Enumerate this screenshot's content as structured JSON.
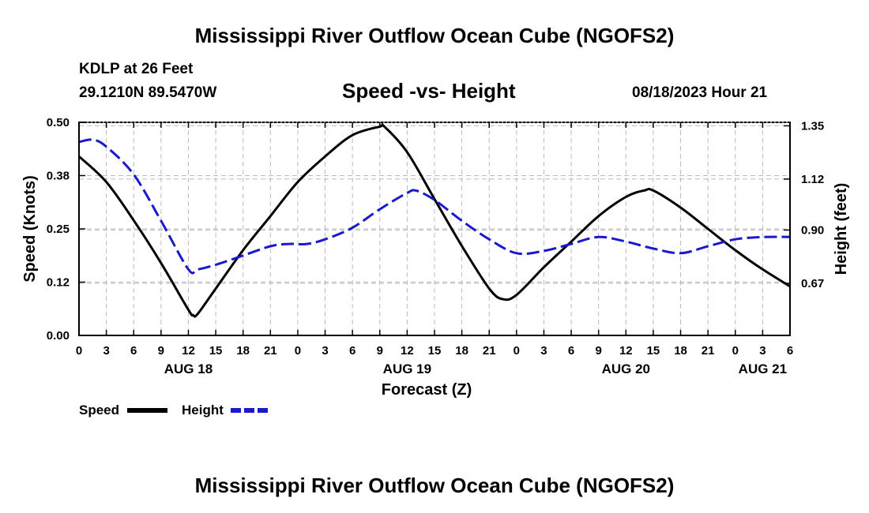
{
  "header": {
    "title": "Mississippi River Outflow Ocean Cube (NGOFS2)",
    "station": "KDLP at 26 Feet",
    "coords": "29.1210N  89.5470W",
    "subtitle": "Speed -vs- Height",
    "datetime": "08/18/2023 Hour 21"
  },
  "legend": {
    "speed_label": "Speed",
    "height_label": "Height"
  },
  "footer": {
    "title": "Mississippi River Outflow Ocean Cube (NGOFS2)"
  },
  "colors": {
    "speed": "#000000",
    "height": "#1a1acc",
    "grid": "#bbbbbb"
  },
  "chart_data": {
    "type": "line",
    "title": "Speed -vs- Height",
    "xlabel": "Forecast (Z)",
    "ylabel_left": "Speed (Knots)",
    "ylabel_right": "Height (feet)",
    "xlim": [
      0,
      78
    ],
    "ylim_left": [
      0,
      0.5
    ],
    "ylim_right": [
      0.445,
      1.365
    ],
    "x_tick_values": [
      0,
      3,
      6,
      9,
      12,
      15,
      18,
      21,
      24,
      27,
      30,
      33,
      36,
      39,
      42,
      45,
      48,
      51,
      54,
      57,
      60,
      63,
      66,
      69,
      72,
      75,
      78
    ],
    "x_tick_labels": [
      "0",
      "3",
      "6",
      "9",
      "12",
      "15",
      "18",
      "21",
      "0",
      "3",
      "6",
      "9",
      "12",
      "15",
      "18",
      "21",
      "0",
      "3",
      "6",
      "9",
      "12",
      "15",
      "18",
      "21",
      "0",
      "3",
      "6"
    ],
    "date_labels": [
      {
        "x": 12,
        "label": "AUG 18"
      },
      {
        "x": 36,
        "label": "AUG 19"
      },
      {
        "x": 60,
        "label": "AUG 20"
      },
      {
        "x": 75,
        "label": "AUG 21"
      }
    ],
    "y_left_ticks": [
      0.0,
      0.125,
      0.25,
      0.375,
      0.5
    ],
    "y_left_tick_labels": [
      "0.00",
      "0.12",
      "0.25",
      "0.38",
      "0.50"
    ],
    "y_right_ticks": [
      0.67,
      0.9,
      1.12,
      1.35
    ],
    "y_right_tick_labels": [
      "0.67",
      "0.90",
      "1.12",
      "1.35"
    ],
    "grid": true,
    "series": [
      {
        "name": "Speed",
        "axis": "left",
        "style": "solid",
        "x": [
          0,
          3,
          6,
          9,
          12,
          12.5,
          13,
          15,
          18,
          21,
          24,
          27,
          30,
          33,
          33.5,
          36,
          39,
          42,
          45,
          46.5,
          48,
          51,
          54,
          57,
          60,
          62,
          63,
          66,
          69,
          72,
          75,
          78
        ],
        "values": [
          0.42,
          0.36,
          0.27,
          0.17,
          0.06,
          0.048,
          0.05,
          0.11,
          0.2,
          0.28,
          0.36,
          0.42,
          0.47,
          0.49,
          0.49,
          0.43,
          0.32,
          0.21,
          0.11,
          0.085,
          0.095,
          0.16,
          0.22,
          0.28,
          0.325,
          0.34,
          0.34,
          0.3,
          0.25,
          0.2,
          0.155,
          0.115
        ]
      },
      {
        "name": "Height",
        "axis": "right",
        "style": "dashed",
        "x": [
          0,
          1.5,
          3,
          6,
          9,
          12,
          13,
          15,
          18,
          21,
          23,
          25,
          27,
          30,
          33,
          36,
          37,
          39,
          42,
          45,
          48,
          51,
          54,
          57,
          60,
          63,
          66,
          69,
          72,
          75,
          78
        ],
        "values": [
          1.28,
          1.29,
          1.26,
          1.14,
          0.94,
          0.73,
          0.73,
          0.75,
          0.79,
          0.83,
          0.84,
          0.84,
          0.86,
          0.91,
          0.99,
          1.06,
          1.07,
          1.03,
          0.94,
          0.86,
          0.8,
          0.81,
          0.84,
          0.87,
          0.85,
          0.82,
          0.8,
          0.83,
          0.86,
          0.87,
          0.87
        ]
      }
    ]
  }
}
